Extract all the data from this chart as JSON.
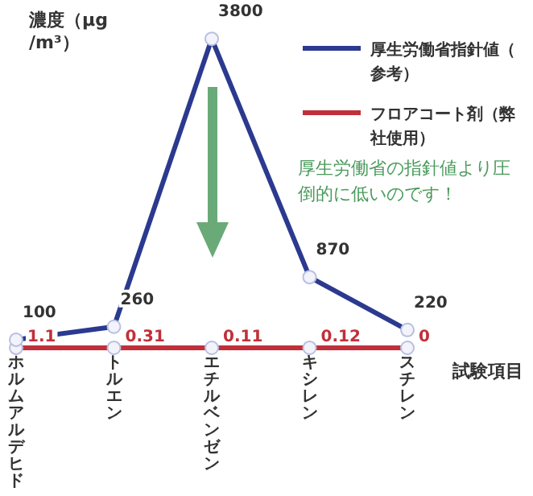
{
  "chart_data": {
    "type": "line",
    "ylabel": "濃度（μg/m³）",
    "xlabel": "試験項目",
    "categories": [
      "ホルムアルデヒド",
      "トルエン",
      "エチルベンゼン",
      "キシレン",
      "スチレン"
    ],
    "series": [
      {
        "name": "厚生労働省指針値（参考）",
        "color": "#2b3a8f",
        "values": [
          100,
          260,
          3800,
          870,
          220
        ]
      },
      {
        "name": "フロアコート剤（弊社使用）",
        "color": "#c0303a",
        "values": [
          1.1,
          0.31,
          0.11,
          0.12,
          0
        ]
      }
    ],
    "annotations": [
      "厚生労働省の指針値より圧倒的に低いのです！"
    ],
    "data_labels": true,
    "legend": "top right",
    "marker": "circle",
    "line_style": "solid",
    "grid": false,
    "tick_labels": "x"
  }
}
